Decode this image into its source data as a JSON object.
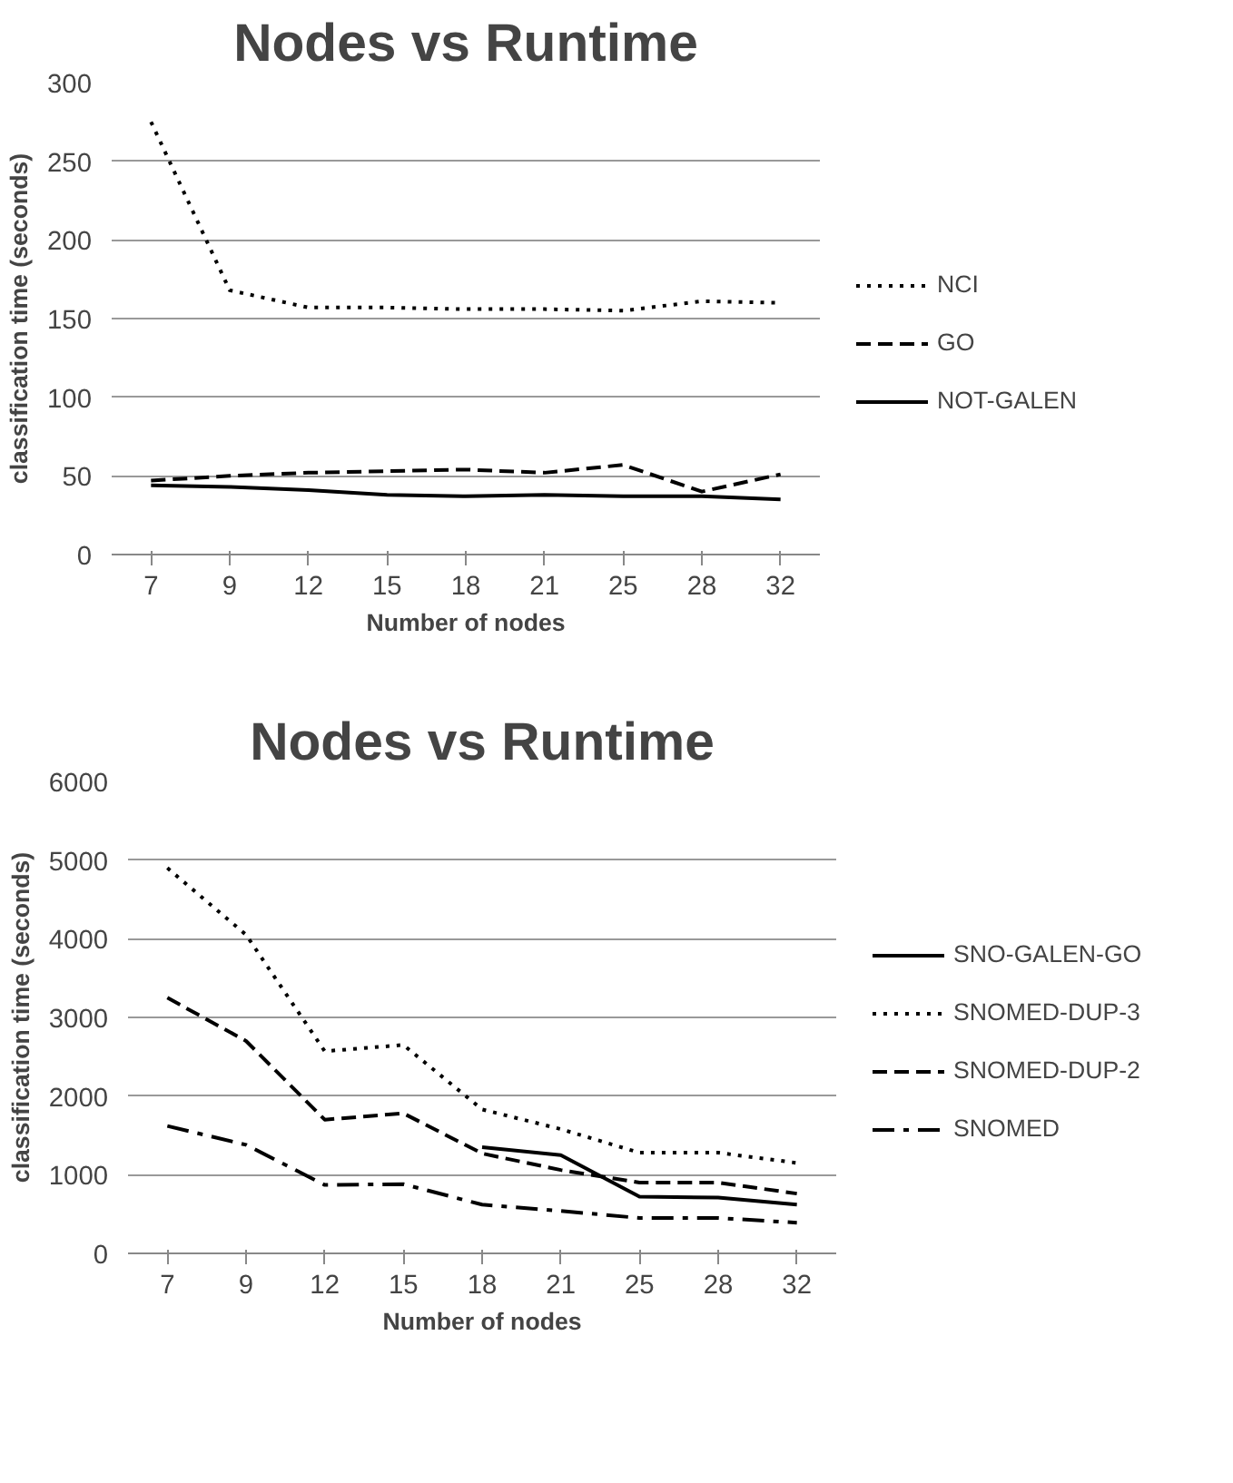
{
  "chart_data": [
    {
      "type": "line",
      "title": "Nodes vs Runtime",
      "xlabel": "Number of nodes",
      "ylabel": "classification time (seconds)",
      "categories": [
        "7",
        "9",
        "12",
        "15",
        "18",
        "21",
        "25",
        "28",
        "32"
      ],
      "ylim": [
        0,
        300
      ],
      "yticks": [
        0,
        50,
        100,
        150,
        200,
        250,
        300
      ],
      "grid": "y",
      "legend": "right",
      "marker": "none",
      "series": [
        {
          "name": "NCI",
          "color": "#000000",
          "line_style": "dotted",
          "values": [
            275,
            168,
            157,
            157,
            156,
            156,
            155,
            161,
            160
          ]
        },
        {
          "name": "GO",
          "color": "#000000",
          "line_style": "dashed",
          "values": [
            47,
            50,
            52,
            53,
            54,
            52,
            57,
            40,
            51
          ]
        },
        {
          "name": "NOT-GALEN",
          "color": "#000000",
          "line_style": "solid",
          "values": [
            44,
            43,
            41,
            38,
            37,
            38,
            37,
            37,
            35
          ]
        }
      ]
    },
    {
      "type": "line",
      "title": "Nodes vs Runtime",
      "xlabel": "Number of nodes",
      "ylabel": "classification time (seconds)",
      "categories": [
        "7",
        "9",
        "12",
        "15",
        "18",
        "21",
        "25",
        "28",
        "32"
      ],
      "ylim": [
        0,
        6000
      ],
      "yticks": [
        0,
        1000,
        2000,
        3000,
        4000,
        5000,
        6000
      ],
      "grid": "y",
      "legend": "right",
      "marker": "none",
      "series": [
        {
          "name": "SNO-GALEN-GO",
          "color": "#000000",
          "line_style": "solid",
          "values": [
            null,
            null,
            null,
            null,
            1350,
            1250,
            720,
            710,
            620
          ]
        },
        {
          "name": "SNOMED-DUP-3",
          "color": "#000000",
          "line_style": "dotted",
          "values": [
            4900,
            4050,
            2570,
            2650,
            1830,
            1580,
            1280,
            1280,
            1150
          ]
        },
        {
          "name": "SNOMED-DUP-2",
          "color": "#000000",
          "line_style": "dashed",
          "values": [
            3250,
            2700,
            1700,
            1780,
            1270,
            1060,
            900,
            900,
            760
          ]
        },
        {
          "name": "SNOMED",
          "color": "#000000",
          "line_style": "dashdot",
          "values": [
            1620,
            1380,
            870,
            880,
            620,
            540,
            450,
            450,
            390
          ]
        }
      ]
    }
  ]
}
